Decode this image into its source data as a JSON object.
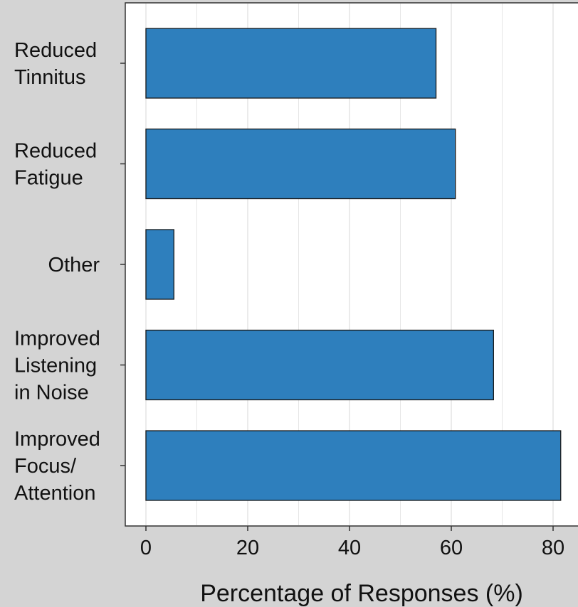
{
  "chart_data": {
    "type": "bar",
    "orientation": "horizontal",
    "categories": [
      [
        "Reduced",
        "Tinnitus"
      ],
      [
        "Reduced",
        "Fatigue"
      ],
      [
        "Other"
      ],
      [
        "Improved",
        "Listening",
        "in Noise"
      ],
      [
        "Improved",
        "Focus/",
        "Attention"
      ]
    ],
    "values": [
      57,
      60.8,
      5.5,
      68.3,
      81.5
    ],
    "xlabel": "Percentage of Responses (%)",
    "ylabel": "",
    "xlim": [
      -3.8,
      84.5
    ],
    "xticks": [
      "0",
      "20",
      "40",
      "60",
      "80"
    ],
    "grid": true,
    "colors": {
      "bar": "#2e7fbd",
      "bar_edge": "#1a1a1a",
      "panel": "#ffffff",
      "background": "#d4d4d4",
      "grid": "#e6e6e6"
    }
  }
}
